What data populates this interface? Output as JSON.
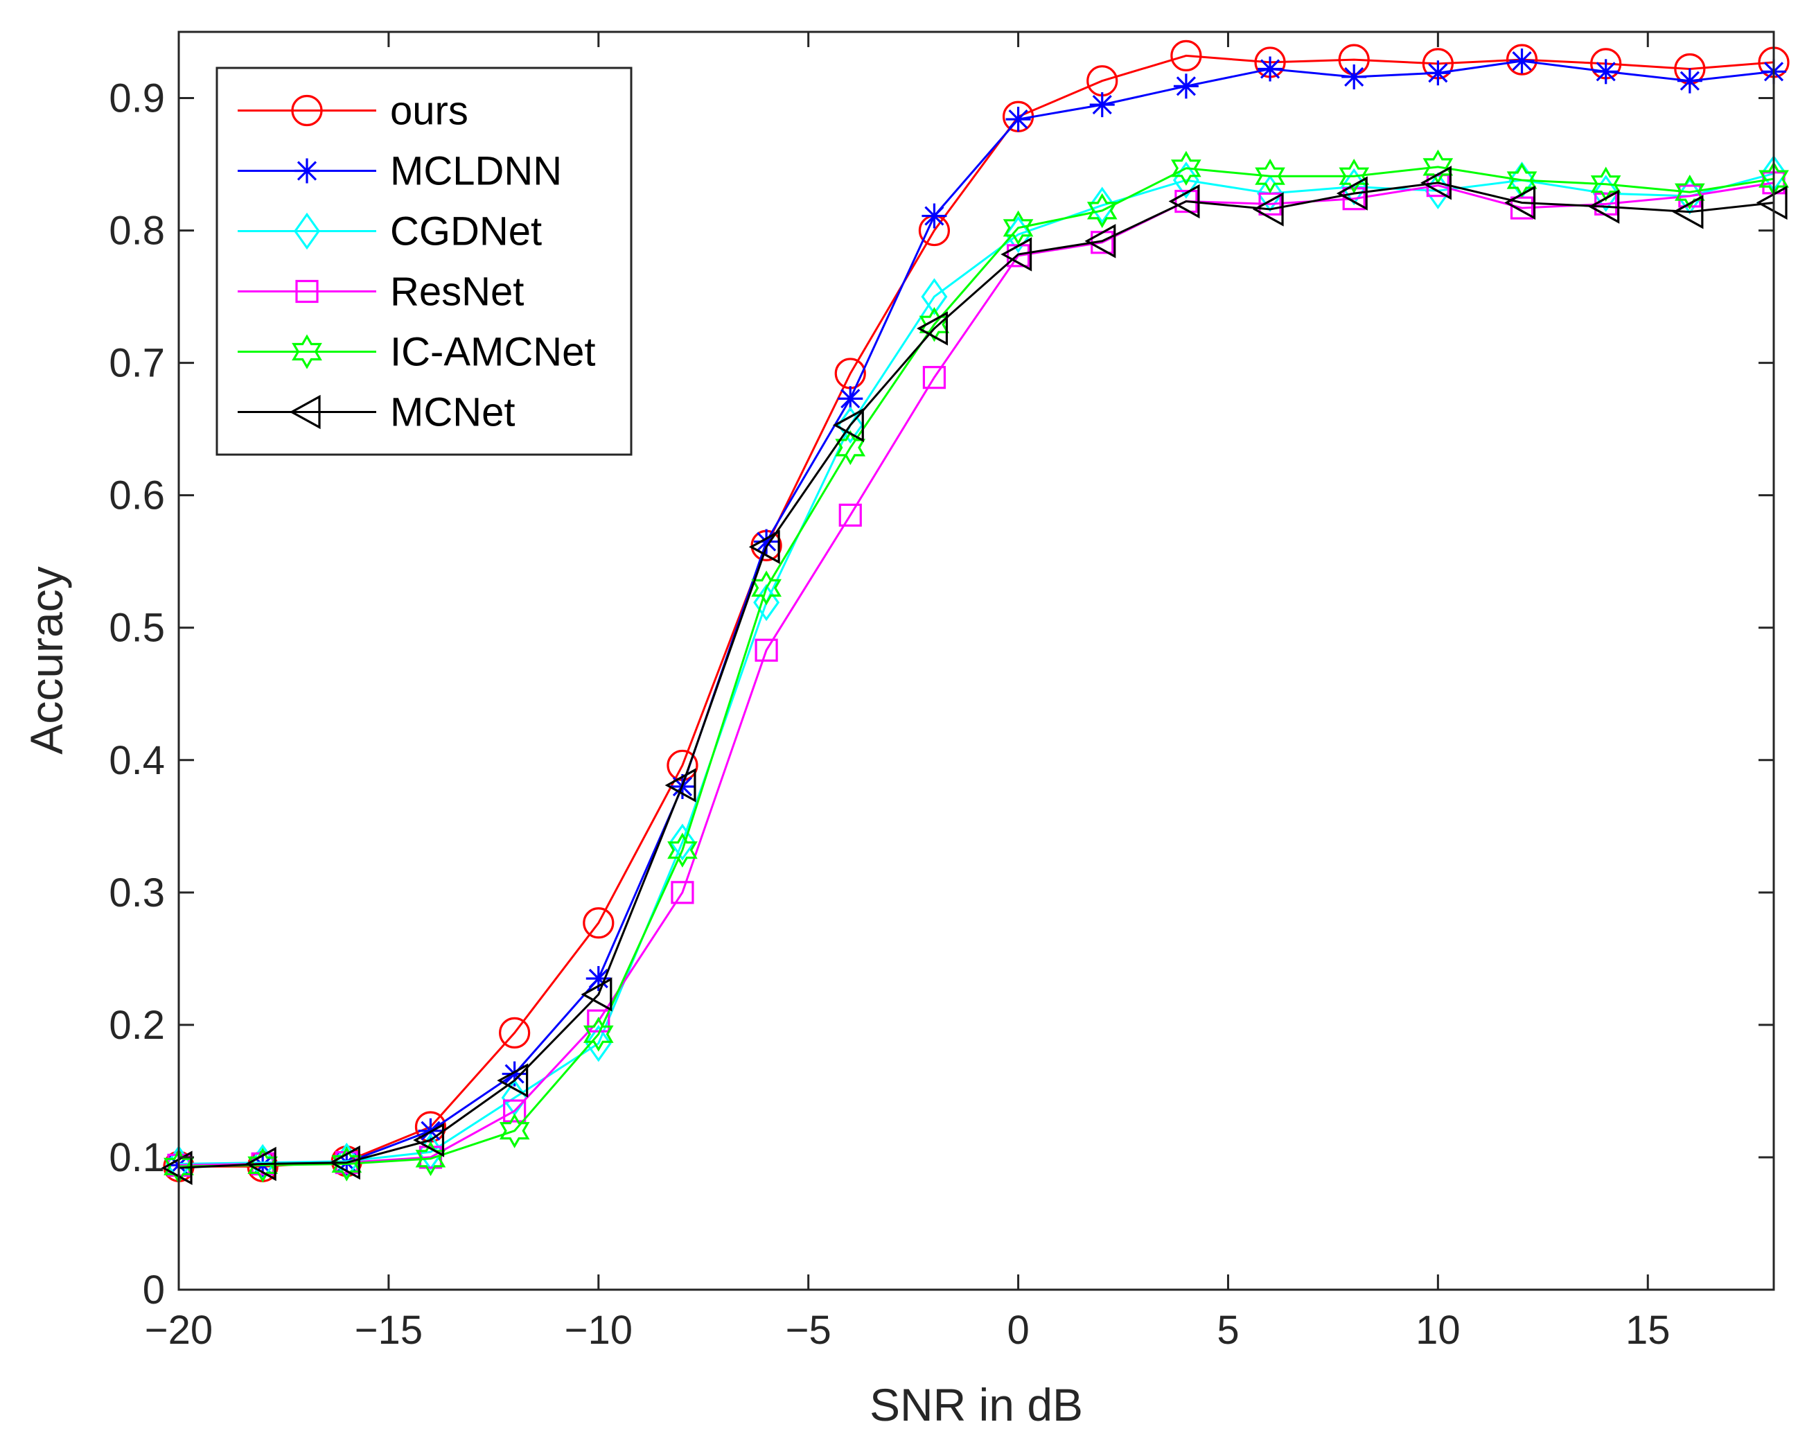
{
  "chart_data": {
    "type": "line",
    "title": "",
    "xlabel": "SNR in dB",
    "ylabel": "Accuracy",
    "xlim": [
      -20,
      18
    ],
    "ylim": [
      0,
      0.95
    ],
    "xticks": [
      -20,
      -15,
      -10,
      -5,
      0,
      5,
      10,
      15
    ],
    "xtick_labels": [
      "−20",
      "−15",
      "−10",
      "−5",
      "0",
      "5",
      "10",
      "15"
    ],
    "yticks": [
      0,
      0.1,
      0.2,
      0.3,
      0.4,
      0.5,
      0.6,
      0.7,
      0.8,
      0.9
    ],
    "ytick_labels": [
      "0",
      "0.1",
      "0.2",
      "0.3",
      "0.4",
      "0.5",
      "0.6",
      "0.7",
      "0.8",
      "0.9"
    ],
    "grid": false,
    "legend_position": "top-left",
    "x": [
      -20,
      -18,
      -16,
      -14,
      -12,
      -10,
      -8,
      -6,
      -4,
      -2,
      0,
      2,
      4,
      6,
      8,
      10,
      12,
      14,
      16,
      18
    ],
    "series": [
      {
        "name": "ours",
        "color": "#ff0000",
        "marker": "circle",
        "values": [
          0.093,
          0.093,
          0.097,
          0.123,
          0.194,
          0.277,
          0.396,
          0.562,
          0.692,
          0.8,
          0.886,
          0.913,
          0.932,
          0.927,
          0.929,
          0.926,
          0.929,
          0.926,
          0.922,
          0.927
        ]
      },
      {
        "name": "MCLDNN",
        "color": "#0000ff",
        "marker": "asterisk",
        "values": [
          0.094,
          0.094,
          0.096,
          0.12,
          0.163,
          0.235,
          0.38,
          0.565,
          0.673,
          0.811,
          0.884,
          0.895,
          0.909,
          0.922,
          0.916,
          0.919,
          0.928,
          0.92,
          0.913,
          0.92
        ]
      },
      {
        "name": "CGDNet",
        "color": "#00ffff",
        "marker": "diamond",
        "values": [
          0.095,
          0.096,
          0.097,
          0.104,
          0.145,
          0.186,
          0.338,
          0.519,
          0.653,
          0.75,
          0.797,
          0.819,
          0.838,
          0.828,
          0.833,
          0.83,
          0.838,
          0.828,
          0.826,
          0.843
        ]
      },
      {
        "name": "ResNet",
        "color": "#ff00ff",
        "marker": "square",
        "values": [
          0.094,
          0.095,
          0.096,
          0.1,
          0.135,
          0.203,
          0.3,
          0.483,
          0.585,
          0.689,
          0.781,
          0.791,
          0.822,
          0.82,
          0.824,
          0.834,
          0.817,
          0.82,
          0.826,
          0.836
        ]
      },
      {
        "name": "IC-AMCNet",
        "color": "#00ff00",
        "marker": "hexagram",
        "values": [
          0.093,
          0.094,
          0.095,
          0.099,
          0.12,
          0.193,
          0.332,
          0.53,
          0.636,
          0.729,
          0.802,
          0.815,
          0.847,
          0.841,
          0.841,
          0.848,
          0.838,
          0.835,
          0.829,
          0.839
        ]
      },
      {
        "name": "MCNet",
        "color": "#000000",
        "marker": "triangle-left",
        "values": [
          0.092,
          0.095,
          0.096,
          0.113,
          0.158,
          0.223,
          0.381,
          0.561,
          0.653,
          0.726,
          0.782,
          0.792,
          0.822,
          0.816,
          0.828,
          0.836,
          0.821,
          0.818,
          0.814,
          0.821
        ]
      }
    ]
  }
}
